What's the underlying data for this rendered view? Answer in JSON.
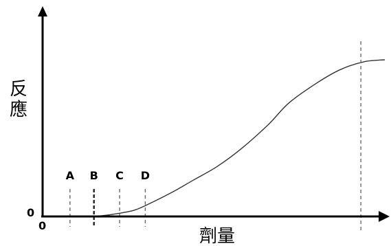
{
  "chart_data": {
    "type": "line",
    "title": "",
    "xlabel": "劑量",
    "ylabel": "反應",
    "origin_labels": {
      "x": "0",
      "y": "0"
    },
    "xlim": [
      0,
      100
    ],
    "ylim": [
      0,
      100
    ],
    "series": [
      {
        "points": [
          [
            0,
            0
          ],
          [
            13,
            0
          ],
          [
            17,
            0.3
          ],
          [
            22,
            1.5
          ],
          [
            27,
            3.3
          ],
          [
            32,
            7.2
          ],
          [
            38,
            12.5
          ],
          [
            44,
            18.5
          ],
          [
            51,
            25.5
          ],
          [
            58,
            34.5
          ],
          [
            66,
            47
          ],
          [
            72,
            58
          ],
          [
            80,
            68
          ],
          [
            87,
            75
          ],
          [
            94,
            79
          ],
          [
            100,
            80
          ]
        ]
      }
    ],
    "markers": [
      {
        "label": "A",
        "x": 8
      },
      {
        "label": "B",
        "x": 15,
        "style": "bold"
      },
      {
        "label": "C",
        "x": 22.5
      },
      {
        "label": "D",
        "x": 30
      },
      {
        "label": "",
        "x": 93
      }
    ]
  }
}
